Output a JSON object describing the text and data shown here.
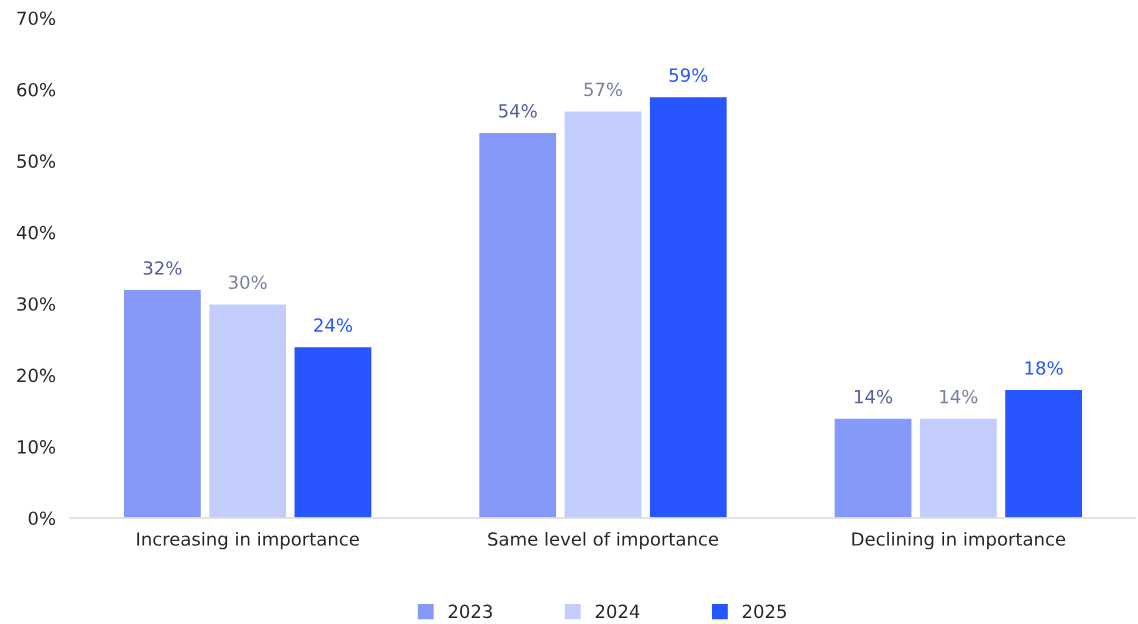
{
  "chart_data": {
    "type": "bar",
    "categories": [
      "Increasing in importance",
      "Same level of importance",
      "Declining in importance"
    ],
    "series": [
      {
        "name": "2023",
        "color": "#8599f8",
        "values": [
          32,
          54,
          14
        ],
        "value_labels": [
          "32%",
          "54%",
          "14%"
        ]
      },
      {
        "name": "2024",
        "color": "#c3cdfb",
        "values": [
          30,
          57,
          14
        ],
        "value_labels": [
          "30%",
          "57%",
          "14%"
        ]
      },
      {
        "name": "2025",
        "color": "#2755ff",
        "values": [
          24,
          59,
          18
        ],
        "value_labels": [
          "24%",
          "59%",
          "18%"
        ]
      }
    ],
    "ylim": [
      0,
      70
    ],
    "yticks": [
      {
        "value": 0,
        "label": "0%"
      },
      {
        "value": 10,
        "label": "10%"
      },
      {
        "value": 20,
        "label": "20%"
      },
      {
        "value": 30,
        "label": "30%"
      },
      {
        "value": 40,
        "label": "40%"
      },
      {
        "value": 50,
        "label": "50%"
      },
      {
        "value": 60,
        "label": "60%"
      },
      {
        "value": 70,
        "label": "70%"
      }
    ],
    "grid": false,
    "legend": "bottom"
  }
}
